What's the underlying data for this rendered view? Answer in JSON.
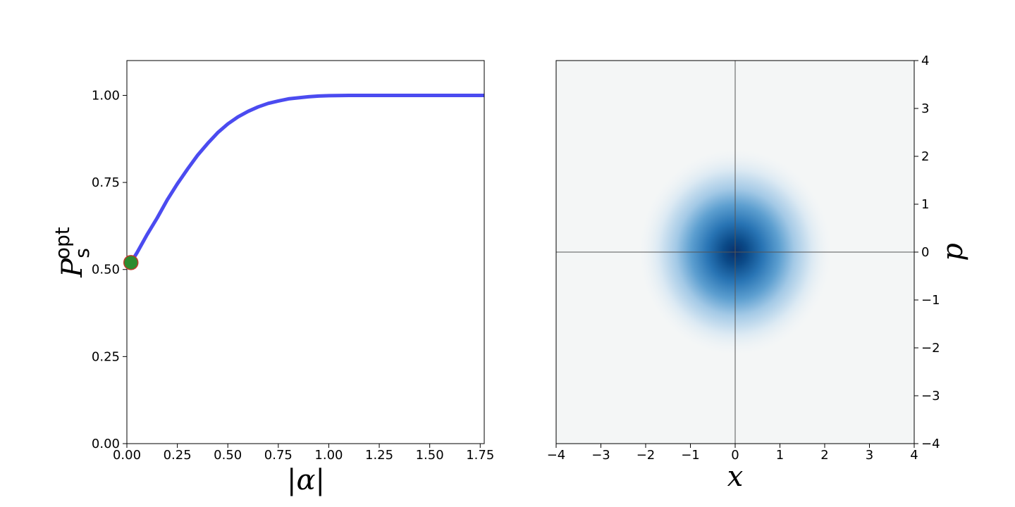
{
  "chart_data": [
    {
      "type": "line",
      "xlabel": "|α|",
      "ylabel": "P",
      "ylabel_sub": "s",
      "ylabel_sup": "opt",
      "xlim": [
        0.0,
        1.77
      ],
      "ylim": [
        0.0,
        1.1
      ],
      "xticks": [
        "0.00",
        "0.25",
        "0.50",
        "0.75",
        "1.00",
        "1.25",
        "1.50",
        "1.75"
      ],
      "yticks": [
        "0.00",
        "0.25",
        "0.50",
        "0.75",
        "1.00"
      ],
      "grid": false,
      "series": [
        {
          "color": "#4b4bf0",
          "x": [
            0.02,
            0.05,
            0.1,
            0.15,
            0.2,
            0.25,
            0.3,
            0.35,
            0.4,
            0.45,
            0.5,
            0.55,
            0.6,
            0.65,
            0.7,
            0.75,
            0.8,
            0.85,
            0.9,
            0.95,
            1.0,
            1.1,
            1.2,
            1.3,
            1.4,
            1.5,
            1.6,
            1.77
          ],
          "y": [
            0.52,
            0.548,
            0.6,
            0.648,
            0.7,
            0.746,
            0.788,
            0.828,
            0.862,
            0.893,
            0.918,
            0.938,
            0.954,
            0.967,
            0.977,
            0.984,
            0.99,
            0.993,
            0.996,
            0.998,
            0.999,
            1.0,
            1.0,
            1.0,
            1.0,
            1.0,
            1.0,
            1.0
          ]
        }
      ],
      "marker": {
        "x": 0.02,
        "y": 0.52,
        "fill": "#2e8b2e",
        "edge": "#c0392b"
      }
    },
    {
      "type": "heatmap",
      "xlabel": "x",
      "ylabel": "p",
      "xlim": [
        -4,
        4
      ],
      "ylim": [
        -4,
        4
      ],
      "xticks": [
        "−4",
        "−3",
        "−2",
        "−1",
        "0",
        "1",
        "2",
        "3",
        "4"
      ],
      "yticks": [
        "−4",
        "−3",
        "−2",
        "−1",
        "0",
        "1",
        "2",
        "3",
        "4"
      ],
      "yaxis_side": "right",
      "colormap": "Blues",
      "peak": {
        "x": 0,
        "y": 0
      },
      "peak_color": "#08306b",
      "background_color": "#f4f6f6",
      "crosshair_lines": [
        0,
        0
      ]
    }
  ]
}
